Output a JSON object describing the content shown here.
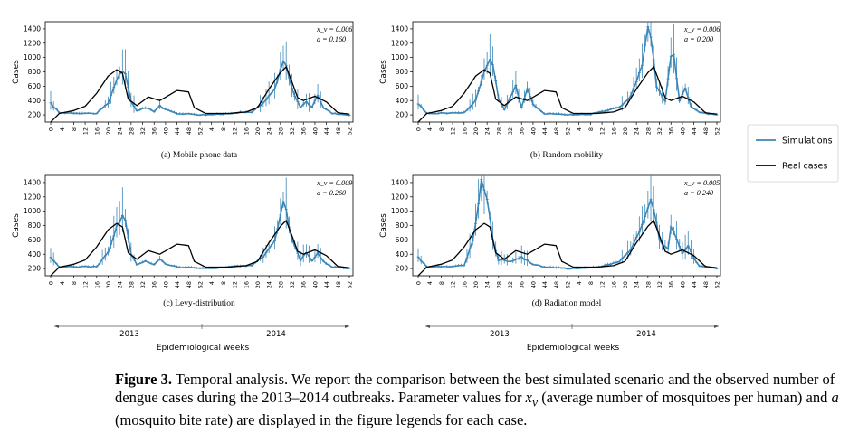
{
  "colors": {
    "simulations": "#3a86b8",
    "real": "#000000"
  },
  "legend": {
    "simulations": "Simulations",
    "real": "Real cases"
  },
  "x_ticks": [
    "0",
    "4",
    "8",
    "12",
    "16",
    "20",
    "24",
    "28",
    "32",
    "36",
    "40",
    "44",
    "48",
    "52",
    "4",
    "8",
    "12",
    "16",
    "20",
    "24",
    "28",
    "32",
    "36",
    "40",
    "44",
    "48",
    "52"
  ],
  "timeline": {
    "left": {
      "year_a": "2013",
      "year_b": "2014",
      "xlabel": "Epidemiological weeks"
    },
    "right": {
      "year_a": "2013",
      "year_b": "2014",
      "xlabel": "Epidemiological weeks"
    }
  },
  "caption": {
    "label": "Figure 3.",
    "part1": "Temporal analysis. We report the comparison between the best simulated scenario and the observed number of dengue cases during the 2013–2014 outbreaks. Parameter values for",
    "sym_xv": "x",
    "sym_xv_sub": "v",
    "part2": "(average number of mosquitoes per human) and",
    "sym_a": "a",
    "part3": "(mosquito bite rate) are displayed in the figure legends for each case."
  },
  "chart_data": [
    {
      "type": "line",
      "panel": "a",
      "title": "(a) Mobile phone data",
      "ylabel": "Cases",
      "ylim": [
        100,
        1500
      ],
      "yticks": [
        200,
        400,
        600,
        800,
        1000,
        1200,
        1400
      ],
      "params": {
        "xv": "x_v = 0.006",
        "a": "a = 0.160"
      },
      "x": "weeks 0–52 (2013) followed by weeks 1–52 (2014)",
      "series": [
        {
          "name": "Simulations",
          "keyframes": [
            [
              0,
              360
            ],
            [
              3,
              230
            ],
            [
              16,
              220
            ],
            [
              20,
              360
            ],
            [
              23,
              700
            ],
            [
              25,
              820
            ],
            [
              26,
              760
            ],
            [
              28,
              380
            ],
            [
              30,
              260
            ],
            [
              33,
              300
            ],
            [
              36,
              250
            ],
            [
              38,
              330
            ],
            [
              40,
              270
            ],
            [
              44,
              220
            ],
            [
              50,
              210
            ],
            [
              52,
              200
            ],
            [
              60,
              210
            ],
            [
              64,
              230
            ],
            [
              70,
              240
            ],
            [
              74,
              360
            ],
            [
              78,
              560
            ],
            [
              81,
              940
            ],
            [
              82,
              880
            ],
            [
              84,
              560
            ],
            [
              87,
              300
            ],
            [
              89,
              390
            ],
            [
              91,
              300
            ],
            [
              93,
              480
            ],
            [
              95,
              300
            ],
            [
              98,
              220
            ],
            [
              101,
              210
            ],
            [
              104,
              200
            ]
          ],
          "noise": 160
        },
        {
          "name": "Real cases",
          "keyframes": [
            [
              0,
              100
            ],
            [
              3,
              220
            ],
            [
              8,
              260
            ],
            [
              12,
              320
            ],
            [
              16,
              500
            ],
            [
              20,
              740
            ],
            [
              23,
              830
            ],
            [
              25,
              780
            ],
            [
              27,
              420
            ],
            [
              30,
              330
            ],
            [
              34,
              450
            ],
            [
              38,
              400
            ],
            [
              44,
              540
            ],
            [
              48,
              520
            ],
            [
              50,
              300
            ],
            [
              54,
              220
            ],
            [
              62,
              220
            ],
            [
              68,
              240
            ],
            [
              72,
              300
            ],
            [
              76,
              560
            ],
            [
              80,
              790
            ],
            [
              82,
              870
            ],
            [
              84,
              660
            ],
            [
              86,
              440
            ],
            [
              88,
              400
            ],
            [
              92,
              460
            ],
            [
              96,
              380
            ],
            [
              100,
              230
            ],
            [
              104,
              210
            ]
          ]
        }
      ]
    },
    {
      "type": "line",
      "panel": "b",
      "title": "(b) Random mobility",
      "ylabel": "Cases",
      "ylim": [
        100,
        1500
      ],
      "yticks": [
        200,
        400,
        600,
        800,
        1000,
        1200,
        1400
      ],
      "params": {
        "xv": "x_v = 0.006",
        "a": "a = 0.200"
      },
      "x": "weeks 0–52 (2013) followed by weeks 1–52 (2014)",
      "series": [
        {
          "name": "Simulations",
          "keyframes": [
            [
              0,
              360
            ],
            [
              3,
              220
            ],
            [
              16,
              230
            ],
            [
              20,
              400
            ],
            [
              23,
              800
            ],
            [
              25,
              980
            ],
            [
              26,
              920
            ],
            [
              28,
              420
            ],
            [
              30,
              280
            ],
            [
              33,
              520
            ],
            [
              34,
              600
            ],
            [
              36,
              300
            ],
            [
              38,
              560
            ],
            [
              40,
              340
            ],
            [
              44,
              220
            ],
            [
              50,
              210
            ],
            [
              52,
              200
            ],
            [
              60,
              210
            ],
            [
              64,
              250
            ],
            [
              70,
              300
            ],
            [
              74,
              460
            ],
            [
              78,
              900
            ],
            [
              80,
              1400
            ],
            [
              81,
              1300
            ],
            [
              83,
              600
            ],
            [
              86,
              380
            ],
            [
              88,
              1000
            ],
            [
              89,
              1050
            ],
            [
              91,
              400
            ],
            [
              93,
              560
            ],
            [
              95,
              320
            ],
            [
              98,
              230
            ],
            [
              104,
              200
            ]
          ],
          "noise": 140
        },
        {
          "name": "Real cases",
          "keyframes": [
            [
              0,
              100
            ],
            [
              3,
              220
            ],
            [
              8,
              260
            ],
            [
              12,
              320
            ],
            [
              16,
              500
            ],
            [
              20,
              740
            ],
            [
              23,
              830
            ],
            [
              25,
              780
            ],
            [
              27,
              420
            ],
            [
              30,
              330
            ],
            [
              34,
              450
            ],
            [
              38,
              400
            ],
            [
              44,
              540
            ],
            [
              48,
              520
            ],
            [
              50,
              300
            ],
            [
              54,
              220
            ],
            [
              62,
              220
            ],
            [
              68,
              240
            ],
            [
              72,
              300
            ],
            [
              76,
              560
            ],
            [
              80,
              790
            ],
            [
              82,
              870
            ],
            [
              84,
              660
            ],
            [
              86,
              440
            ],
            [
              88,
              400
            ],
            [
              92,
              460
            ],
            [
              96,
              380
            ],
            [
              100,
              230
            ],
            [
              104,
              210
            ]
          ]
        }
      ]
    },
    {
      "type": "line",
      "panel": "c",
      "title": "(c) Levy-distribution",
      "ylabel": "Cases",
      "ylim": [
        100,
        1500
      ],
      "yticks": [
        200,
        400,
        600,
        800,
        1000,
        1200,
        1400
      ],
      "params": {
        "xv": "x_v = 0.009",
        "a": "a = 0.260"
      },
      "x": "weeks 0–52 (2013) followed by weeks 1–52 (2014)",
      "series": [
        {
          "name": "Simulations",
          "keyframes": [
            [
              0,
              360
            ],
            [
              3,
              220
            ],
            [
              16,
              230
            ],
            [
              20,
              420
            ],
            [
              23,
              780
            ],
            [
              25,
              940
            ],
            [
              26,
              880
            ],
            [
              28,
              400
            ],
            [
              30,
              260
            ],
            [
              33,
              300
            ],
            [
              36,
              250
            ],
            [
              38,
              330
            ],
            [
              40,
              270
            ],
            [
              44,
              220
            ],
            [
              50,
              210
            ],
            [
              52,
              200
            ],
            [
              60,
              210
            ],
            [
              64,
              230
            ],
            [
              70,
              240
            ],
            [
              74,
              360
            ],
            [
              78,
              600
            ],
            [
              81,
              1100
            ],
            [
              82,
              1000
            ],
            [
              84,
              600
            ],
            [
              87,
              320
            ],
            [
              89,
              420
            ],
            [
              91,
              300
            ],
            [
              93,
              420
            ],
            [
              95,
              300
            ],
            [
              98,
              220
            ],
            [
              104,
              200
            ]
          ],
          "noise": 150
        },
        {
          "name": "Real cases",
          "keyframes": [
            [
              0,
              100
            ],
            [
              3,
              220
            ],
            [
              8,
              260
            ],
            [
              12,
              320
            ],
            [
              16,
              500
            ],
            [
              20,
              740
            ],
            [
              23,
              830
            ],
            [
              25,
              780
            ],
            [
              27,
              420
            ],
            [
              30,
              330
            ],
            [
              34,
              450
            ],
            [
              38,
              400
            ],
            [
              44,
              540
            ],
            [
              48,
              520
            ],
            [
              50,
              300
            ],
            [
              54,
              220
            ],
            [
              62,
              220
            ],
            [
              68,
              240
            ],
            [
              72,
              300
            ],
            [
              76,
              560
            ],
            [
              80,
              790
            ],
            [
              82,
              870
            ],
            [
              84,
              660
            ],
            [
              86,
              440
            ],
            [
              88,
              400
            ],
            [
              92,
              460
            ],
            [
              96,
              380
            ],
            [
              100,
              230
            ],
            [
              104,
              210
            ]
          ]
        }
      ]
    },
    {
      "type": "line",
      "panel": "d",
      "title": "(d) Radiation model",
      "ylabel": "Cases",
      "ylim": [
        100,
        1500
      ],
      "yticks": [
        200,
        400,
        600,
        800,
        1000,
        1200,
        1400
      ],
      "params": {
        "xv": "x_v = 0.005",
        "a": "a = 0.240"
      },
      "x": "weeks 0–52 (2013) followed by weeks 1–52 (2014)",
      "series": [
        {
          "name": "Simulations",
          "keyframes": [
            [
              0,
              360
            ],
            [
              3,
              220
            ],
            [
              16,
              240
            ],
            [
              19,
              600
            ],
            [
              21,
              1100
            ],
            [
              22,
              1450
            ],
            [
              24,
              1200
            ],
            [
              26,
              600
            ],
            [
              28,
              320
            ],
            [
              32,
              300
            ],
            [
              36,
              360
            ],
            [
              40,
              260
            ],
            [
              44,
              220
            ],
            [
              52,
              200
            ],
            [
              60,
              210
            ],
            [
              64,
              230
            ],
            [
              70,
              300
            ],
            [
              74,
              460
            ],
            [
              78,
              800
            ],
            [
              81,
              1150
            ],
            [
              82,
              1050
            ],
            [
              84,
              600
            ],
            [
              87,
              480
            ],
            [
              88,
              800
            ],
            [
              90,
              600
            ],
            [
              92,
              420
            ],
            [
              94,
              520
            ],
            [
              96,
              340
            ],
            [
              98,
              230
            ],
            [
              104,
              200
            ]
          ],
          "noise": 150
        },
        {
          "name": "Real cases",
          "keyframes": [
            [
              0,
              100
            ],
            [
              3,
              220
            ],
            [
              8,
              260
            ],
            [
              12,
              320
            ],
            [
              16,
              500
            ],
            [
              20,
              740
            ],
            [
              23,
              830
            ],
            [
              25,
              780
            ],
            [
              27,
              420
            ],
            [
              30,
              330
            ],
            [
              34,
              450
            ],
            [
              38,
              400
            ],
            [
              44,
              540
            ],
            [
              48,
              520
            ],
            [
              50,
              300
            ],
            [
              54,
              220
            ],
            [
              62,
              220
            ],
            [
              68,
              240
            ],
            [
              72,
              300
            ],
            [
              76,
              560
            ],
            [
              80,
              790
            ],
            [
              82,
              870
            ],
            [
              84,
              660
            ],
            [
              86,
              440
            ],
            [
              88,
              400
            ],
            [
              92,
              460
            ],
            [
              96,
              380
            ],
            [
              100,
              230
            ],
            [
              104,
              210
            ]
          ]
        }
      ]
    }
  ]
}
